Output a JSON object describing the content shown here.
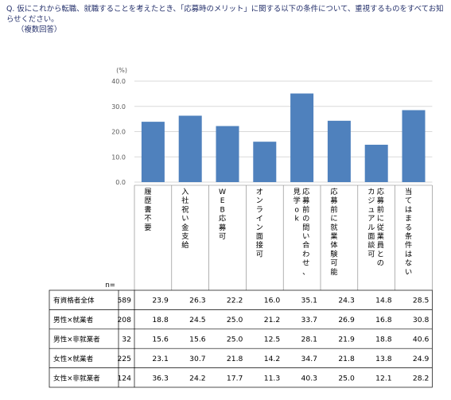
{
  "question": {
    "line1": "Q. 仮にこれから転職、就職することを考えたとき、「応募時のメリット」に関する以下の条件について、重視するものをすべてお知らせください。",
    "line2": "（複数回答）"
  },
  "colors": {
    "bar": "#4f81bd"
  },
  "chart_data": {
    "type": "bar",
    "unit_label": "(%)",
    "ylim": [
      0,
      40
    ],
    "yticks": [
      "0.0",
      "10.0",
      "20.0",
      "30.0",
      "40.0"
    ],
    "categories": [
      "履歴書不要",
      "入社祝い金支給",
      "WEB応募可",
      "オンライン面接可",
      "応募前の問い合わせ、見学ok",
      "応募前に就業体験可能",
      "応募前に従業員とのカジュアル面談可",
      "当てはまる条件はない"
    ],
    "category_columns": [
      [
        "履歴書不要"
      ],
      [
        "入社祝い金支給"
      ],
      [
        "WEB応募可"
      ],
      [
        "オンライン面接可"
      ],
      [
        "見学ok",
        "応募前の問い合わせ、"
      ],
      [
        "応募前に就業体験可能"
      ],
      [
        "カジュアル面談可",
        "応募前に従業員との"
      ],
      [
        "当てはまる条件はない"
      ]
    ],
    "series": [
      {
        "name": "有資格者全体",
        "values": [
          23.9,
          26.3,
          22.2,
          16.0,
          35.1,
          24.3,
          14.8,
          28.5
        ]
      }
    ],
    "table": {
      "n_header": "n=",
      "rows": [
        {
          "label": "有資格者全体",
          "n": "589",
          "values": [
            "23.9",
            "26.3",
            "22.2",
            "16.0",
            "35.1",
            "24.3",
            "14.8",
            "28.5"
          ]
        },
        {
          "label": "男性×就業者",
          "n": "208",
          "values": [
            "18.8",
            "24.5",
            "25.0",
            "21.2",
            "33.7",
            "26.9",
            "16.8",
            "30.8"
          ]
        },
        {
          "label": "男性×非就業者",
          "n": "32",
          "values": [
            "15.6",
            "15.6",
            "25.0",
            "12.5",
            "28.1",
            "21.9",
            "18.8",
            "40.6"
          ]
        },
        {
          "label": "女性×就業者",
          "n": "225",
          "values": [
            "23.1",
            "30.7",
            "21.8",
            "14.2",
            "34.7",
            "21.8",
            "13.8",
            "24.9"
          ]
        },
        {
          "label": "女性×非就業者",
          "n": "124",
          "values": [
            "36.3",
            "24.2",
            "17.7",
            "11.3",
            "40.3",
            "25.0",
            "12.1",
            "28.2"
          ]
        }
      ]
    }
  }
}
